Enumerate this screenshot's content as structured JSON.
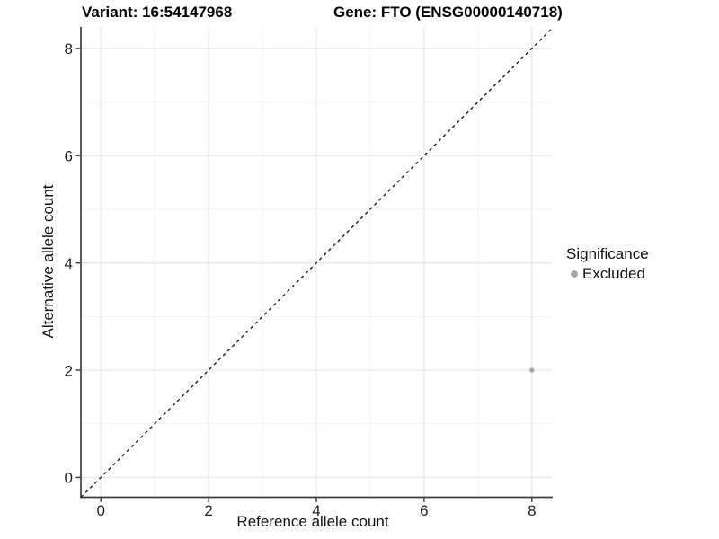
{
  "header": {
    "variant_title": "Variant: 16:54147968",
    "gene_title": "Gene: FTO (ENSG00000140718)"
  },
  "chart_data": {
    "type": "scatter",
    "xlabel": "Reference allele count",
    "ylabel": "Alternative allele count",
    "xlim": [
      -0.37,
      8.37
    ],
    "ylim": [
      -0.37,
      8.4
    ],
    "x_ticks": [
      0,
      2,
      4,
      6,
      8
    ],
    "y_ticks": [
      0,
      2,
      4,
      6,
      8
    ],
    "x_minor_ticks": [
      1,
      3,
      5,
      7
    ],
    "y_minor_ticks": [
      1,
      3,
      5,
      7
    ],
    "grid": "major and minor, light gray on white",
    "identity_line": {
      "type": "y=x",
      "style": "dashed",
      "color": "#111111"
    },
    "series": [
      {
        "name": "Excluded",
        "color": "#a6a6a6",
        "points": [
          {
            "x": 8,
            "y": 2
          }
        ]
      }
    ],
    "legend": {
      "title": "Significance",
      "position": "right",
      "entries": [
        {
          "label": "Excluded",
          "color": "#a6a6a6"
        }
      ]
    }
  },
  "colors": {
    "background": "#ffffff",
    "grid_major": "#e6e6e6",
    "grid_minor": "#f2f2f2",
    "axis_line": "#3d3d3d",
    "tick": "#333333",
    "tick_label": "#1f1f1f",
    "point": "#a6a6a6",
    "dashed_line": "#111111"
  }
}
